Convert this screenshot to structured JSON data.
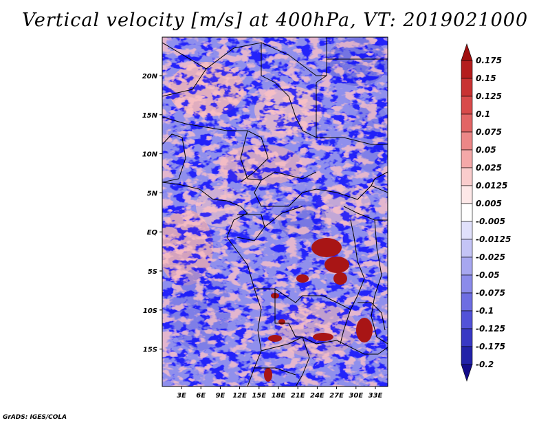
{
  "title": "Vertical velocity [m/s] at 400hPa, VT: 2019021000",
  "footer": "GrADS: IGES/COLA",
  "lat_labels": [
    "20N",
    "15N",
    "10N",
    "5N",
    "EQ",
    "5S",
    "10S",
    "15S"
  ],
  "lon_labels": [
    "3E",
    "6E",
    "9E",
    "12E",
    "15E",
    "18E",
    "21E",
    "24E",
    "27E",
    "30E",
    "33E"
  ],
  "colorbar": {
    "levels": [
      "0.175",
      "0.15",
      "0.125",
      "0.1",
      "0.075",
      "0.05",
      "0.025",
      "0.0125",
      "0.005",
      "-0.005",
      "-0.0125",
      "-0.025",
      "-0.05",
      "-0.075",
      "-0.1",
      "-0.125",
      "-0.175",
      "-0.2"
    ],
    "colors": [
      "#a01010",
      "#b41e1e",
      "#c83232",
      "#d84a4a",
      "#e26565",
      "#ec8787",
      "#f4a8a8",
      "#f9cccc",
      "#fde8e8",
      "#ffffff",
      "#e0e0fb",
      "#c4c4f6",
      "#a7a7f0",
      "#8b8bea",
      "#6e6ee2",
      "#5252d8",
      "#3838c4",
      "#2222a8",
      "#140c8a"
    ]
  }
}
